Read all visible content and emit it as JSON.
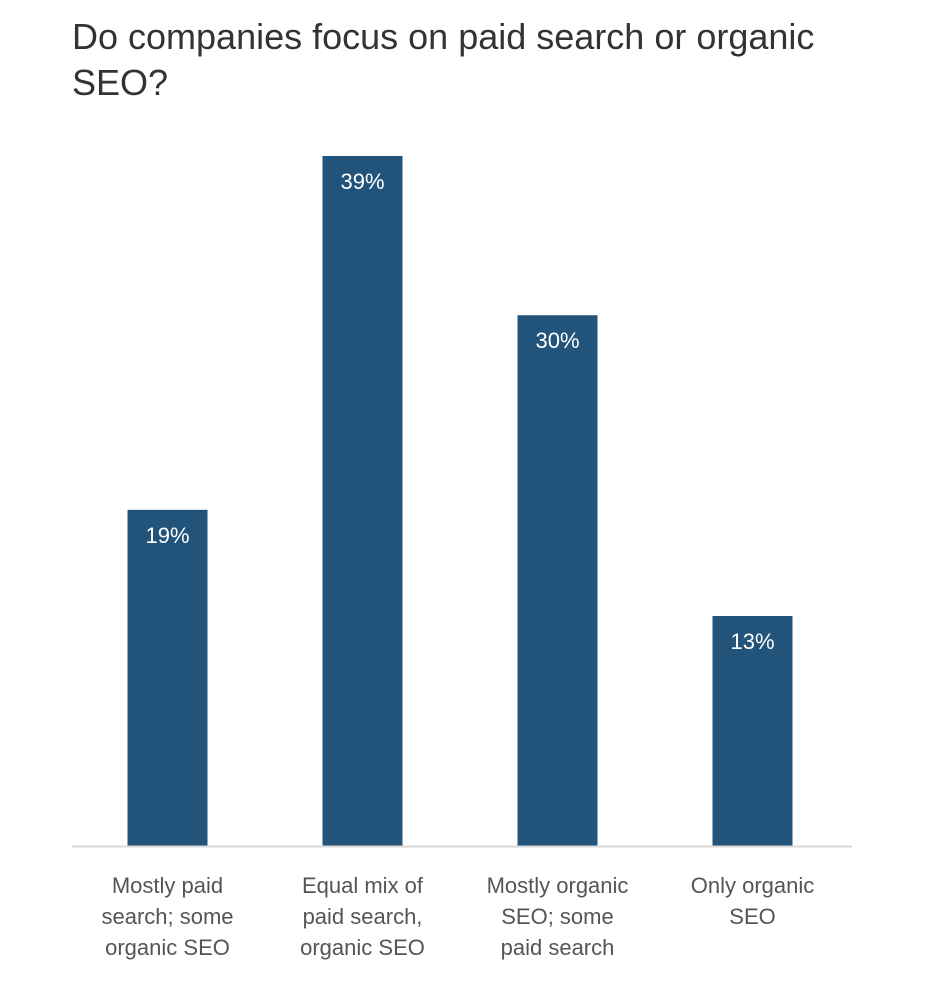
{
  "chart_data": {
    "type": "bar",
    "title": "Do companies focus on paid search or organic SEO?",
    "categories": [
      [
        "Mostly paid",
        "search; some",
        "organic SEO"
      ],
      [
        "Equal mix of",
        "paid search,",
        "organic SEO"
      ],
      [
        "Mostly organic",
        "SEO; some",
        "paid search"
      ],
      [
        "Only organic",
        "SEO"
      ]
    ],
    "values": [
      19,
      39,
      30,
      13
    ],
    "value_labels": [
      "19%",
      "39%",
      "30%",
      "13%"
    ],
    "ylim": [
      0,
      39
    ],
    "grid": false,
    "colors": {
      "bar": "#22537a",
      "baseline": "#d9d9d9"
    }
  }
}
